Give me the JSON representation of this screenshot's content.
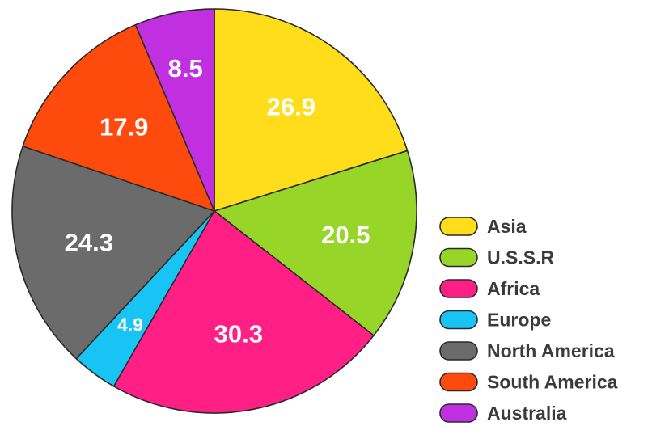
{
  "chart_data": {
    "type": "pie",
    "title": "",
    "legend_position": "right",
    "slices": [
      {
        "label": "Asia",
        "value": 26.9,
        "display": "26.9",
        "color": "#FFDD1A"
      },
      {
        "label": "U.S.S.R",
        "value": 20.5,
        "display": "20.5",
        "color": "#97D629"
      },
      {
        "label": "Africa",
        "value": 30.3,
        "display": "30.3",
        "color": "#FF1F85"
      },
      {
        "label": "Europe",
        "value": 4.9,
        "display": "4.9",
        "color": "#18C4F4"
      },
      {
        "label": "North America",
        "value": 24.3,
        "display": "24.3",
        "color": "#6B6B6B"
      },
      {
        "label": "South America",
        "value": 17.9,
        "display": "17.9",
        "color": "#FF4A0E"
      },
      {
        "label": "Australia",
        "value": 8.5,
        "display": "8.5",
        "color": "#C030E0"
      }
    ]
  }
}
